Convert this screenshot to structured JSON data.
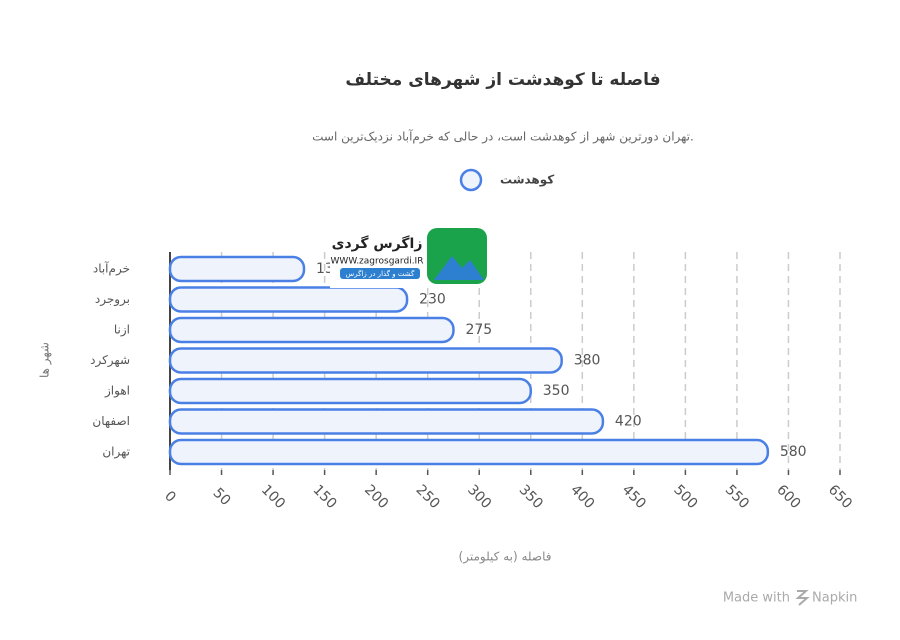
{
  "chart_data": {
    "type": "barh",
    "title": "فاصله تا کوهدشت از شهرهای مختلف",
    "subtitle": "تهران دورترین شهر از کوهدشت است، در حالی که خرم‌آباد نزدیک‌ترین است.",
    "xlabel": "فاصله (به کیلومتر)",
    "ylabel": "شهر ها",
    "categories": [
      "خرم‌آباد",
      "بروجرد",
      "ازنا",
      "شهرکرد",
      "اهواز",
      "اصفهان",
      "تهران"
    ],
    "series": [
      {
        "name": "کوهدشت",
        "color": "#4a80e6",
        "values": [
          130,
          230,
          275,
          380,
          350,
          420,
          580
        ]
      }
    ],
    "xlim": [
      0,
      650
    ],
    "xticks": [
      0,
      50,
      100,
      150,
      200,
      250,
      300,
      350,
      400,
      450,
      500,
      550,
      600,
      650
    ],
    "grid": true
  },
  "watermark": {
    "name": "زاگرس گردی",
    "url": "WWW.zagrosgardi.IR",
    "tagline": "گشت و گذار در زاگرس"
  },
  "footer": {
    "made_with": "Made with",
    "brand": "Napkin"
  }
}
